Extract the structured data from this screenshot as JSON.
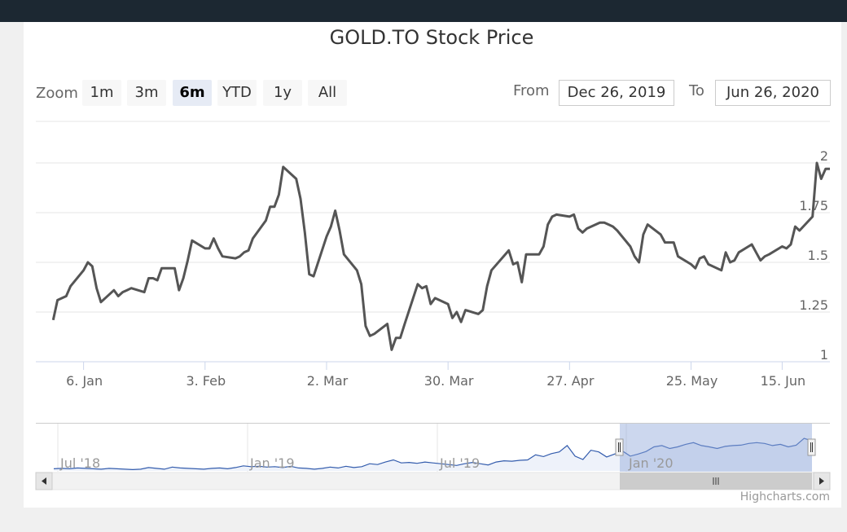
{
  "chart_data": {
    "type": "line",
    "title": "GOLD.TO Stock Price",
    "series": [
      {
        "x": [
          "2019-12-30",
          "2019-12-31",
          "2020-01-02",
          "2020-01-03",
          "2020-01-06",
          "2020-01-07",
          "2020-01-08",
          "2020-01-09",
          "2020-01-10",
          "2020-01-13",
          "2020-01-14",
          "2020-01-15",
          "2020-01-16",
          "2020-01-17",
          "2020-01-20",
          "2020-01-21",
          "2020-01-22",
          "2020-01-23",
          "2020-01-24",
          "2020-01-27",
          "2020-01-28",
          "2020-01-29",
          "2020-01-30",
          "2020-01-31",
          "2020-02-03",
          "2020-02-04",
          "2020-02-05",
          "2020-02-06",
          "2020-02-07",
          "2020-02-10",
          "2020-02-11",
          "2020-02-12",
          "2020-02-13",
          "2020-02-14",
          "2020-02-17",
          "2020-02-18",
          "2020-02-19",
          "2020-02-20",
          "2020-02-21",
          "2020-02-24",
          "2020-02-25",
          "2020-02-26",
          "2020-02-27",
          "2020-02-28",
          "2020-03-02",
          "2020-03-03",
          "2020-03-04",
          "2020-03-05",
          "2020-03-06",
          "2020-03-09",
          "2020-03-10",
          "2020-03-11",
          "2020-03-12",
          "2020-03-13",
          "2020-03-16",
          "2020-03-17",
          "2020-03-18",
          "2020-03-19",
          "2020-03-20",
          "2020-03-23",
          "2020-03-24",
          "2020-03-25",
          "2020-03-26",
          "2020-03-27",
          "2020-03-30",
          "2020-03-31",
          "2020-04-01",
          "2020-04-02",
          "2020-04-03",
          "2020-04-06",
          "2020-04-07",
          "2020-04-08",
          "2020-04-09",
          "2020-04-13",
          "2020-04-14",
          "2020-04-15",
          "2020-04-16",
          "2020-04-17",
          "2020-04-20",
          "2020-04-21",
          "2020-04-22",
          "2020-04-23",
          "2020-04-24",
          "2020-04-27",
          "2020-04-28",
          "2020-04-29",
          "2020-04-30",
          "2020-05-01",
          "2020-05-04",
          "2020-05-05",
          "2020-05-06",
          "2020-05-07",
          "2020-05-08",
          "2020-05-11",
          "2020-05-12",
          "2020-05-13",
          "2020-05-14",
          "2020-05-15",
          "2020-05-18",
          "2020-05-19",
          "2020-05-20",
          "2020-05-21",
          "2020-05-22",
          "2020-05-25",
          "2020-05-26",
          "2020-05-27",
          "2020-05-28",
          "2020-05-29",
          "2020-06-01",
          "2020-06-02",
          "2020-06-03",
          "2020-06-04",
          "2020-06-05",
          "2020-06-08",
          "2020-06-09",
          "2020-06-10",
          "2020-06-11",
          "2020-06-12",
          "2020-06-15",
          "2020-06-16",
          "2020-06-17",
          "2020-06-18",
          "2020-06-19",
          "2020-06-22",
          "2020-06-23",
          "2020-06-24",
          "2020-06-25",
          "2020-06-26"
        ],
        "y": [
          1.21,
          1.31,
          1.33,
          1.38,
          1.46,
          1.5,
          1.48,
          1.37,
          1.3,
          1.36,
          1.33,
          1.35,
          1.36,
          1.37,
          1.35,
          1.42,
          1.42,
          1.41,
          1.47,
          1.47,
          1.36,
          1.42,
          1.51,
          1.61,
          1.57,
          1.57,
          1.62,
          1.57,
          1.53,
          1.52,
          1.53,
          1.55,
          1.56,
          1.62,
          1.71,
          1.78,
          1.78,
          1.84,
          1.98,
          1.92,
          1.82,
          1.65,
          1.44,
          1.43,
          1.63,
          1.68,
          1.76,
          1.66,
          1.54,
          1.46,
          1.39,
          1.18,
          1.13,
          1.14,
          1.19,
          1.06,
          1.12,
          1.12,
          1.19,
          1.39,
          1.37,
          1.38,
          1.29,
          1.32,
          1.29,
          1.22,
          1.25,
          1.2,
          1.26,
          1.24,
          1.26,
          1.38,
          1.46,
          1.56,
          1.49,
          1.5,
          1.4,
          1.54,
          1.54,
          1.58,
          1.69,
          1.73,
          1.74,
          1.73,
          1.74,
          1.67,
          1.65,
          1.67,
          1.7,
          1.7,
          1.69,
          1.68,
          1.66,
          1.58,
          1.53,
          1.5,
          1.64,
          1.69,
          1.64,
          1.6,
          1.6,
          1.6,
          1.53,
          1.49,
          1.47,
          1.52,
          1.53,
          1.49,
          1.46,
          1.55,
          1.5,
          1.51,
          1.55,
          1.59,
          1.55,
          1.51,
          1.53,
          1.54,
          1.58,
          1.57,
          1.59,
          1.68,
          1.66,
          1.73,
          2.0,
          1.92,
          1.97,
          1.97
        ]
      }
    ],
    "yaxis": {
      "ticks": [
        "1",
        "1.25",
        "1.5",
        "1.75",
        "2"
      ],
      "min": 1,
      "max": 2,
      "grid": true
    },
    "xaxis": {
      "ticks": [
        "6. Jan",
        "3. Feb",
        "2. Mar",
        "30. Mar",
        "27. Apr",
        "25. May",
        "15. Jun"
      ]
    },
    "navigator": {
      "labels": [
        "Jul '18",
        "Jan '19",
        "Jul '19",
        "Jan '20"
      ],
      "y": [
        1.0,
        1.01,
        1.0,
        1.02,
        1.01,
        1.0,
        0.99,
        1.01,
        1.0,
        0.99,
        0.98,
        0.99,
        1.03,
        1.01,
        0.99,
        1.04,
        1.02,
        1.01,
        1.0,
        0.99,
        1.01,
        1.02,
        1.0,
        1.03,
        1.07,
        1.05,
        1.06,
        1.04,
        1.05,
        1.03,
        1.06,
        1.02,
        1.01,
        0.99,
        1.01,
        1.04,
        1.02,
        1.06,
        1.03,
        1.05,
        1.12,
        1.1,
        1.16,
        1.21,
        1.14,
        1.15,
        1.13,
        1.16,
        1.14,
        1.12,
        1.1,
        1.08,
        1.12,
        1.15,
        1.12,
        1.09,
        1.16,
        1.19,
        1.18,
        1.2,
        1.21,
        1.33,
        1.29,
        1.36,
        1.4,
        1.55,
        1.3,
        1.22,
        1.44,
        1.4,
        1.28,
        1.35,
        1.42,
        1.3,
        1.35,
        1.41,
        1.52,
        1.55,
        1.48,
        1.52,
        1.58,
        1.62,
        1.55,
        1.52,
        1.48,
        1.53,
        1.55,
        1.56,
        1.6,
        1.62,
        1.6,
        1.55,
        1.58,
        1.52,
        1.56,
        1.72,
        1.66
      ]
    }
  },
  "zoom": {
    "label": "Zoom",
    "buttons": [
      "1m",
      "3m",
      "6m",
      "YTD",
      "1y",
      "All"
    ],
    "selected": "6m"
  },
  "range": {
    "from_label": "From",
    "from_value": "Dec 26, 2019",
    "to_label": "To",
    "to_value": "Jun 26, 2020"
  },
  "credits": "Highcharts.com",
  "colors": {
    "line": "#555555",
    "navigator_line": "#335cad",
    "navigator_mask": "#c2cdeb",
    "topbar": "#1c2832"
  }
}
